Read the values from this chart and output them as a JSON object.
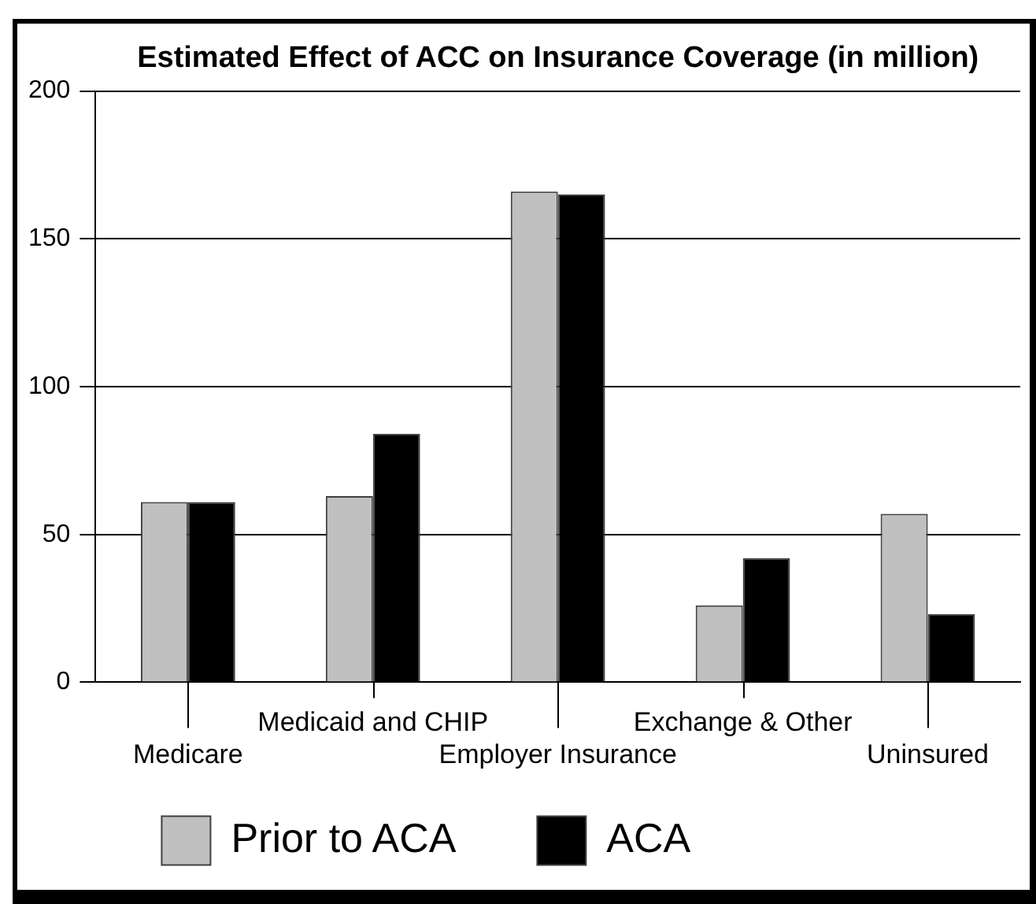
{
  "chart_data": {
    "type": "bar",
    "title": "Estimated Effect of ACC on Insurance Coverage (in million)",
    "categories": [
      "Medicare",
      "Medicaid and CHIP",
      "Employer Insurance",
      "Exchange & Other",
      "Uninsured"
    ],
    "series": [
      {
        "name": "Prior to ACA",
        "color": "#c0c0c0",
        "values": [
          61,
          63,
          166,
          26,
          57
        ]
      },
      {
        "name": "ACA",
        "color": "#000000",
        "values": [
          61,
          84,
          165,
          42,
          23
        ]
      }
    ],
    "ylim": [
      0,
      200
    ],
    "yticks": [
      0,
      50,
      100,
      150,
      200
    ],
    "grid": "y",
    "legend": "bottom"
  }
}
